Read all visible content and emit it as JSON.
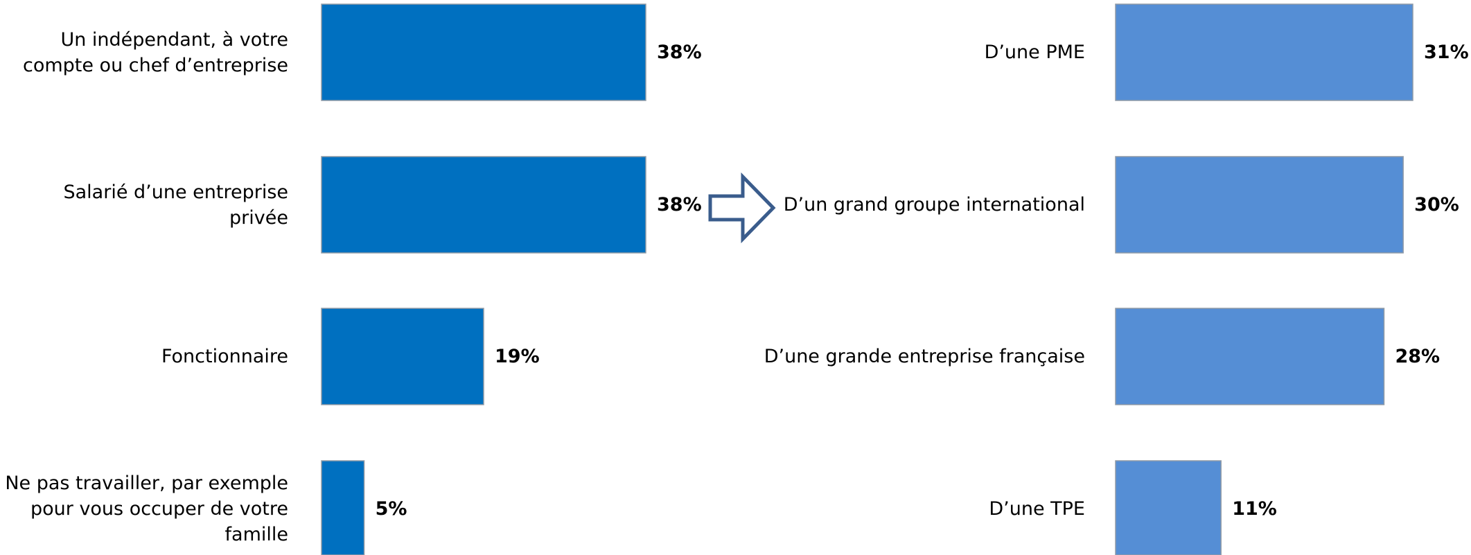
{
  "chart_data": [
    {
      "type": "bar",
      "orientation": "horizontal",
      "categories": [
        "Un indépendant, à votre compte ou chef d’entreprise",
        "Salarié d’une entreprise privée",
        "Fonctionnaire",
        "Ne pas travailler, par exemple pour vous occuper de votre famille"
      ],
      "values": [
        38,
        38,
        19,
        5
      ],
      "value_labels": [
        "38%",
        "38%",
        "19%",
        "5%"
      ],
      "unit": "%",
      "xlim": [
        0,
        38
      ],
      "color": "#0070C0",
      "grid": false,
      "legend": "none"
    },
    {
      "type": "bar",
      "orientation": "horizontal",
      "categories": [
        "D’une PME",
        "D’un grand groupe international",
        "D’une grande entreprise française",
        "D’une TPE"
      ],
      "values": [
        31,
        30,
        28,
        11
      ],
      "value_labels": [
        "31%",
        "30%",
        "28%",
        "11%"
      ],
      "unit": "%",
      "xlim": [
        0,
        31
      ],
      "color": "#558ED5",
      "grid": false,
      "legend": "none"
    }
  ],
  "connector": {
    "icon": "right-arrow-icon",
    "color": "#3A5C8C"
  }
}
